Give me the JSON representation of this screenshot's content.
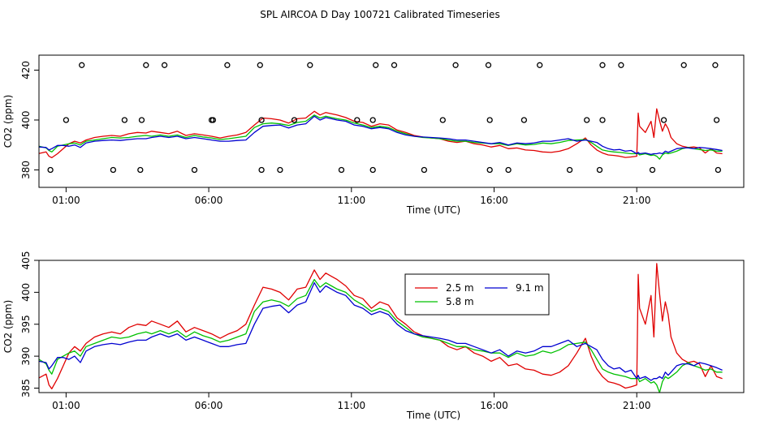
{
  "title": "SPL AIRCOA D  Day 100721  Calibrated Timeseries",
  "chart_data": [
    {
      "type": "line",
      "xlabel": "Time (UTC)",
      "ylabel": "CO2 (ppm)",
      "xlim": [
        0.05,
        24.75
      ],
      "ylim": [
        373,
        426
      ],
      "x_ticks": [
        {
          "value": 1,
          "label": "01:00"
        },
        {
          "value": 6,
          "label": "06:00"
        },
        {
          "value": 11,
          "label": "11:00"
        },
        {
          "value": 16,
          "label": "16:00"
        },
        {
          "value": 21,
          "label": "21:00"
        }
      ],
      "y_ticks": [
        {
          "value": 380,
          "label": "380"
        },
        {
          "value": 400,
          "label": "400"
        },
        {
          "value": 420,
          "label": "420"
        }
      ],
      "series_ref": "shared",
      "calibration_markers": [
        {
          "x": 1.55,
          "y": 422
        },
        {
          "x": 3.8,
          "y": 422
        },
        {
          "x": 4.45,
          "y": 422
        },
        {
          "x": 6.65,
          "y": 422
        },
        {
          "x": 7.8,
          "y": 422
        },
        {
          "x": 9.55,
          "y": 422
        },
        {
          "x": 11.85,
          "y": 422
        },
        {
          "x": 12.5,
          "y": 422
        },
        {
          "x": 14.65,
          "y": 422
        },
        {
          "x": 15.8,
          "y": 422
        },
        {
          "x": 17.6,
          "y": 422
        },
        {
          "x": 19.8,
          "y": 422
        },
        {
          "x": 20.45,
          "y": 422
        },
        {
          "x": 22.65,
          "y": 422
        },
        {
          "x": 23.75,
          "y": 422
        },
        {
          "x": 1.0,
          "y": 400
        },
        {
          "x": 3.05,
          "y": 400
        },
        {
          "x": 3.65,
          "y": 400
        },
        {
          "x": 6.1,
          "y": 400
        },
        {
          "x": 6.15,
          "y": 400
        },
        {
          "x": 7.85,
          "y": 400
        },
        {
          "x": 9.0,
          "y": 400
        },
        {
          "x": 11.2,
          "y": 400
        },
        {
          "x": 11.75,
          "y": 400
        },
        {
          "x": 14.2,
          "y": 400
        },
        {
          "x": 15.85,
          "y": 400
        },
        {
          "x": 17.05,
          "y": 400
        },
        {
          "x": 19.25,
          "y": 400
        },
        {
          "x": 19.8,
          "y": 400
        },
        {
          "x": 21.95,
          "y": 400
        },
        {
          "x": 23.8,
          "y": 400
        },
        {
          "x": 0.45,
          "y": 380
        },
        {
          "x": 2.65,
          "y": 380
        },
        {
          "x": 3.6,
          "y": 380
        },
        {
          "x": 5.5,
          "y": 380
        },
        {
          "x": 7.85,
          "y": 380
        },
        {
          "x": 8.5,
          "y": 380
        },
        {
          "x": 10.65,
          "y": 380
        },
        {
          "x": 11.75,
          "y": 380
        },
        {
          "x": 13.55,
          "y": 380
        },
        {
          "x": 15.85,
          "y": 380
        },
        {
          "x": 16.5,
          "y": 380
        },
        {
          "x": 18.65,
          "y": 380
        },
        {
          "x": 19.7,
          "y": 380
        },
        {
          "x": 21.55,
          "y": 380
        },
        {
          "x": 23.85,
          "y": 380
        }
      ]
    },
    {
      "type": "line",
      "xlabel": "Time (UTC)",
      "ylabel": "CO2 (ppm)",
      "xlim": [
        0.05,
        24.75
      ],
      "ylim": [
        384.3,
        405
      ],
      "x_ticks": [
        {
          "value": 1,
          "label": "01:00"
        },
        {
          "value": 6,
          "label": "06:00"
        },
        {
          "value": 11,
          "label": "11:00"
        },
        {
          "value": 16,
          "label": "16:00"
        },
        {
          "value": 21,
          "label": "21:00"
        }
      ],
      "y_ticks": [
        {
          "value": 385,
          "label": "385"
        },
        {
          "value": 390,
          "label": "390"
        },
        {
          "value": 395,
          "label": "395"
        },
        {
          "value": 400,
          "label": "400"
        },
        {
          "value": 405,
          "label": "405"
        }
      ],
      "series_ref": "shared",
      "legend": {
        "position": "top-right-center",
        "entries": [
          "2.5 m",
          "5.8 m",
          "9.1 m"
        ]
      }
    }
  ],
  "series": [
    {
      "name": "2.5 m",
      "color": "#e00000",
      "x": [
        0.05,
        0.3,
        0.4,
        0.5,
        0.7,
        0.9,
        1.1,
        1.3,
        1.5,
        1.7,
        2.0,
        2.3,
        2.6,
        2.9,
        3.2,
        3.5,
        3.8,
        4.0,
        4.3,
        4.6,
        4.9,
        5.2,
        5.5,
        5.8,
        6.1,
        6.4,
        6.7,
        7.0,
        7.3,
        7.6,
        7.9,
        8.2,
        8.5,
        8.8,
        9.1,
        9.4,
        9.7,
        9.9,
        10.1,
        10.3,
        10.5,
        10.8,
        11.1,
        11.4,
        11.7,
        12.0,
        12.3,
        12.6,
        12.9,
        13.2,
        13.5,
        13.8,
        14.1,
        14.4,
        14.7,
        15.0,
        15.3,
        15.6,
        15.9,
        16.2,
        16.5,
        16.8,
        17.1,
        17.4,
        17.7,
        18.0,
        18.3,
        18.6,
        18.9,
        19.2,
        19.4,
        19.6,
        19.8,
        20.0,
        20.2,
        20.4,
        20.6,
        20.8,
        21.0,
        21.05,
        21.1,
        21.3,
        21.5,
        21.6,
        21.7,
        21.8,
        21.9,
        22.0,
        22.1,
        22.2,
        22.4,
        22.6,
        22.8,
        23.0,
        23.2,
        23.4,
        23.6,
        23.8,
        24.0
      ],
      "y": [
        386.6,
        387.2,
        385.5,
        384.9,
        386.5,
        388.5,
        390.5,
        391.5,
        390.8,
        392,
        393,
        393.5,
        393.8,
        393.5,
        394.5,
        395,
        394.8,
        395.5,
        395,
        394.5,
        395.5,
        393.8,
        394.5,
        394,
        393.5,
        392.8,
        393.5,
        394,
        395,
        398,
        400.8,
        400.5,
        400,
        398.8,
        400.5,
        400.8,
        403.5,
        402,
        403,
        402.5,
        402,
        401,
        399.5,
        399,
        397.5,
        398.5,
        398,
        396,
        395,
        393.8,
        393.2,
        392.8,
        392.5,
        391.5,
        391,
        391.5,
        390.5,
        390,
        389.2,
        389.8,
        388.5,
        388.8,
        388,
        387.8,
        387.2,
        387,
        387.5,
        388.5,
        390.5,
        392.8,
        390,
        388,
        386.8,
        386,
        385.8,
        385.5,
        385,
        385.2,
        385.5,
        402.8,
        397.5,
        395,
        399.5,
        393,
        404.5,
        399.8,
        395.5,
        398.5,
        396.5,
        393,
        390.5,
        389.5,
        389,
        389.2,
        388.8,
        386.8,
        388.5,
        386.8,
        386.5
      ]
    },
    {
      "name": "5.8 m",
      "color": "#00c000",
      "x": [
        0.05,
        0.3,
        0.4,
        0.5,
        0.7,
        0.9,
        1.1,
        1.3,
        1.5,
        1.7,
        2.0,
        2.3,
        2.6,
        2.9,
        3.2,
        3.5,
        3.8,
        4.0,
        4.3,
        4.6,
        4.9,
        5.2,
        5.5,
        5.8,
        6.1,
        6.4,
        6.7,
        7.0,
        7.3,
        7.6,
        7.9,
        8.2,
        8.5,
        8.8,
        9.1,
        9.4,
        9.7,
        9.9,
        10.1,
        10.3,
        10.5,
        10.8,
        11.1,
        11.4,
        11.7,
        12.0,
        12.3,
        12.6,
        12.9,
        13.2,
        13.5,
        13.8,
        14.1,
        14.4,
        14.7,
        15.0,
        15.3,
        15.6,
        15.9,
        16.2,
        16.5,
        16.8,
        17.1,
        17.4,
        17.7,
        18.0,
        18.3,
        18.6,
        18.9,
        19.2,
        19.4,
        19.6,
        19.8,
        20.0,
        20.2,
        20.4,
        20.6,
        20.8,
        21.0,
        21.05,
        21.1,
        21.3,
        21.5,
        21.6,
        21.7,
        21.8,
        21.9,
        22.0,
        22.1,
        22.2,
        22.4,
        22.6,
        22.8,
        23.0,
        23.2,
        23.4,
        23.6,
        23.8,
        24.0
      ],
      "y": [
        389.5,
        388.8,
        387.8,
        387.2,
        389.5,
        390,
        390.5,
        390.8,
        390,
        391.5,
        392,
        392.5,
        393,
        392.8,
        393,
        393.5,
        393.8,
        393.5,
        394,
        393.5,
        394,
        393,
        393.8,
        393.2,
        392.8,
        392.2,
        392.5,
        393,
        393.5,
        397,
        398.5,
        398.8,
        398.5,
        397.8,
        399,
        399.5,
        402,
        400.8,
        401.5,
        401,
        400.5,
        400,
        398.8,
        398,
        397,
        397.5,
        397,
        395.5,
        394.5,
        393.5,
        393,
        392.8,
        392.5,
        392,
        391.5,
        391.5,
        391,
        390.8,
        390.5,
        390.5,
        389.8,
        390.5,
        390,
        390.2,
        390.8,
        390.5,
        391,
        391.8,
        392,
        392.2,
        391,
        389.5,
        388,
        387.5,
        387.2,
        387,
        386.8,
        386.5,
        386.5,
        386.5,
        386,
        386.5,
        385.8,
        386,
        385.5,
        384.3,
        386,
        386.8,
        386.5,
        386.8,
        387.5,
        388.5,
        389,
        388.5,
        388.2,
        387.8,
        388,
        387.5,
        387.5
      ]
    },
    {
      "name": "9.1 m",
      "color": "#0000d0",
      "x": [
        0.05,
        0.3,
        0.4,
        0.5,
        0.7,
        0.9,
        1.1,
        1.3,
        1.5,
        1.7,
        2.0,
        2.3,
        2.6,
        2.9,
        3.2,
        3.5,
        3.8,
        4.0,
        4.3,
        4.6,
        4.9,
        5.2,
        5.5,
        5.8,
        6.1,
        6.4,
        6.7,
        7.0,
        7.3,
        7.6,
        7.9,
        8.2,
        8.5,
        8.8,
        9.1,
        9.4,
        9.7,
        9.9,
        10.1,
        10.3,
        10.5,
        10.8,
        11.1,
        11.4,
        11.7,
        12.0,
        12.3,
        12.6,
        12.9,
        13.2,
        13.5,
        13.8,
        14.1,
        14.4,
        14.7,
        15.0,
        15.3,
        15.6,
        15.9,
        16.2,
        16.5,
        16.8,
        17.1,
        17.4,
        17.7,
        18.0,
        18.3,
        18.6,
        18.9,
        19.2,
        19.4,
        19.6,
        19.8,
        20.0,
        20.2,
        20.4,
        20.6,
        20.8,
        21.0,
        21.05,
        21.1,
        21.3,
        21.5,
        21.6,
        21.7,
        21.8,
        21.9,
        22.0,
        22.1,
        22.2,
        22.4,
        22.6,
        22.8,
        23.0,
        23.2,
        23.4,
        23.6,
        23.8,
        24.0
      ],
      "y": [
        389.2,
        389,
        388,
        388.5,
        389.8,
        389.8,
        389.5,
        390,
        389,
        390.8,
        391.5,
        391.8,
        392,
        391.8,
        392.2,
        392.5,
        392.5,
        393,
        393.5,
        393,
        393.5,
        392.5,
        393,
        392.5,
        392,
        391.5,
        391.5,
        391.8,
        392,
        395,
        397.5,
        397.8,
        398,
        396.8,
        398,
        398.5,
        401.5,
        400,
        401,
        400.5,
        400,
        399.5,
        398,
        397.5,
        396.5,
        397,
        396.5,
        395,
        394,
        393.5,
        393.2,
        393,
        392.8,
        392.5,
        392,
        392,
        391.5,
        391,
        390.5,
        391,
        390,
        390.8,
        390.5,
        390.8,
        391.5,
        391.5,
        392,
        392.5,
        391.5,
        392,
        391.5,
        391,
        389.5,
        388.5,
        388,
        388.2,
        387.5,
        387.8,
        386.5,
        387,
        386.5,
        386.8,
        386.2,
        386.5,
        386.5,
        386.8,
        386.5,
        387.5,
        387,
        387.5,
        388.5,
        388.8,
        388.8,
        388.5,
        389,
        388.8,
        388.5,
        388.2,
        387.8
      ]
    }
  ]
}
